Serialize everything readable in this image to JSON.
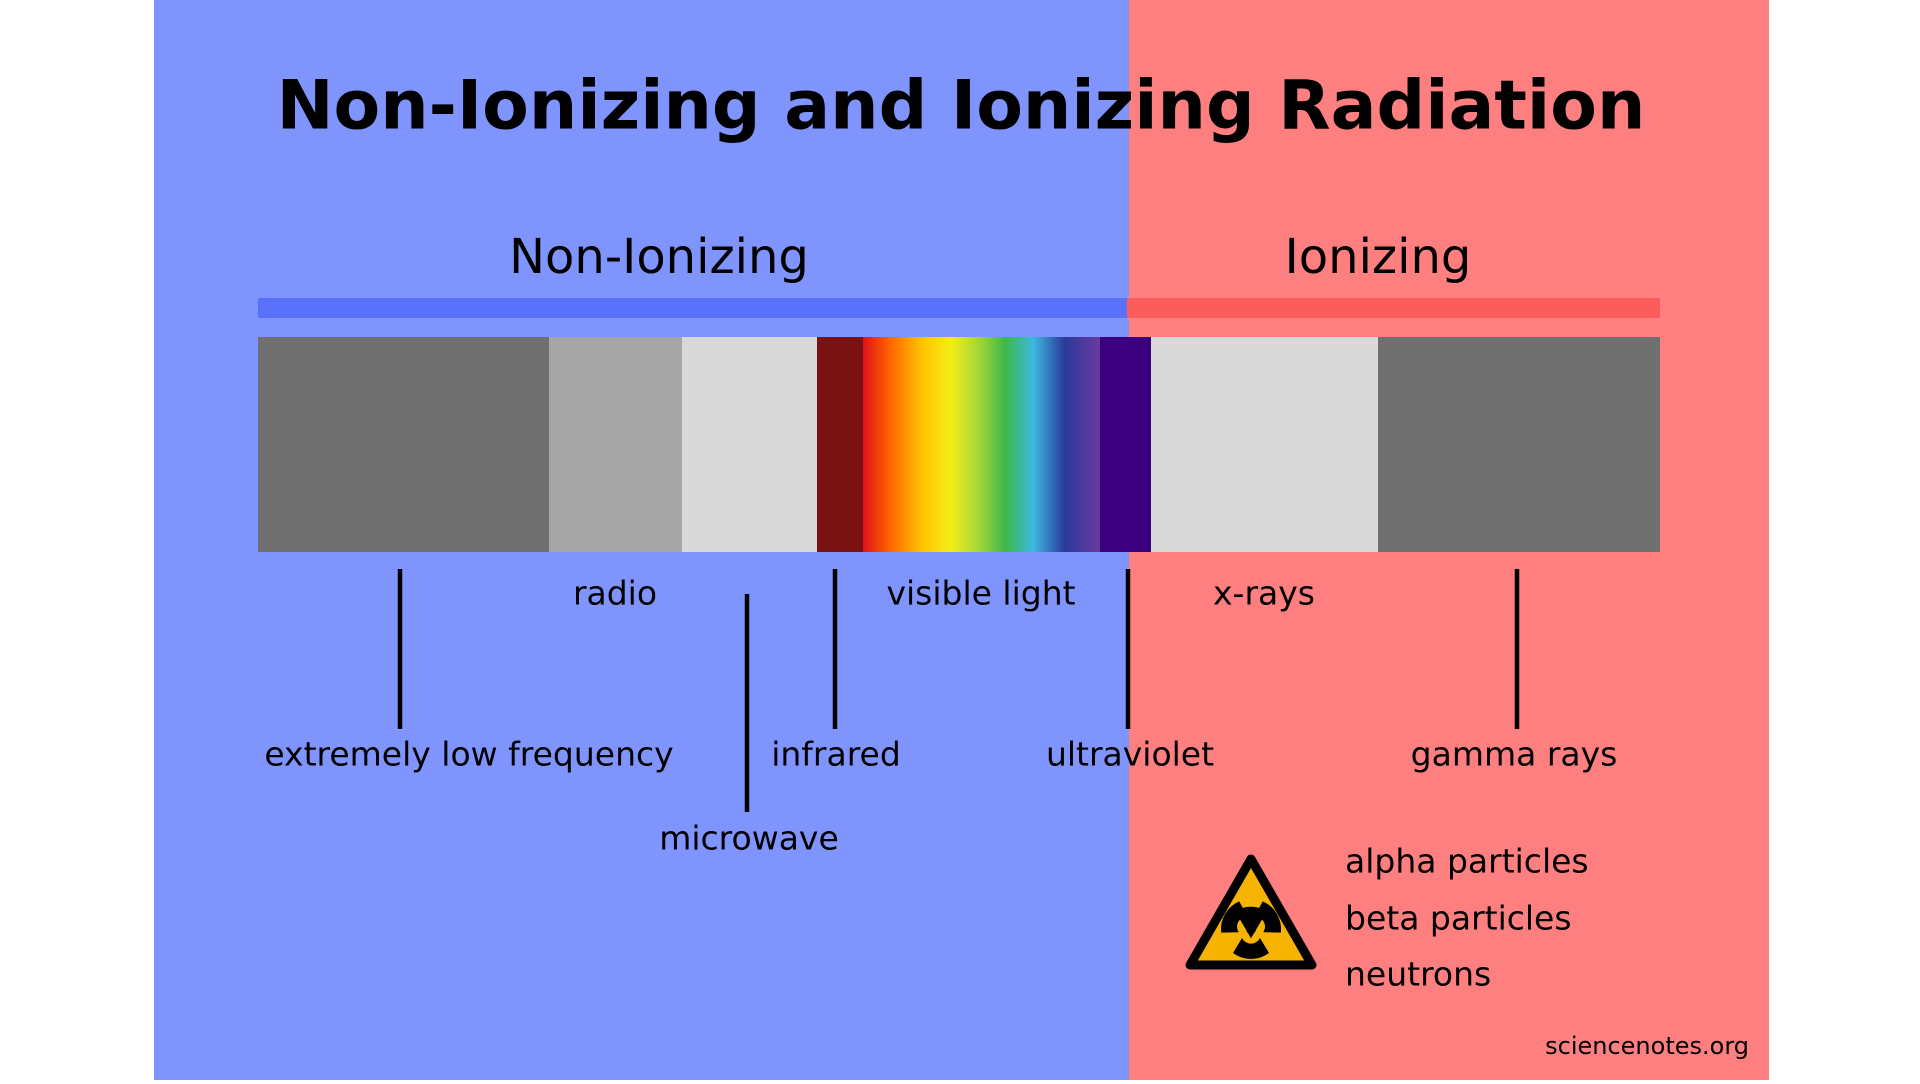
{
  "title": "Non-Ionizing and Ionizing Radiation",
  "sections": {
    "non_ionizing": "Non-Ionizing",
    "ionizing": "Ionizing"
  },
  "bands": {
    "radio": "radio",
    "visible_light": "visible light",
    "x_rays": "x-rays",
    "extremely_low_frequency": "extremely low frequency",
    "infrared": "infrared",
    "ultraviolet": "ultraviolet",
    "gamma_rays": "gamma rays",
    "microwave": "microwave"
  },
  "particles": [
    "alpha particles",
    "beta particles",
    "neutrons"
  ],
  "credit": "sciencenotes.org"
}
